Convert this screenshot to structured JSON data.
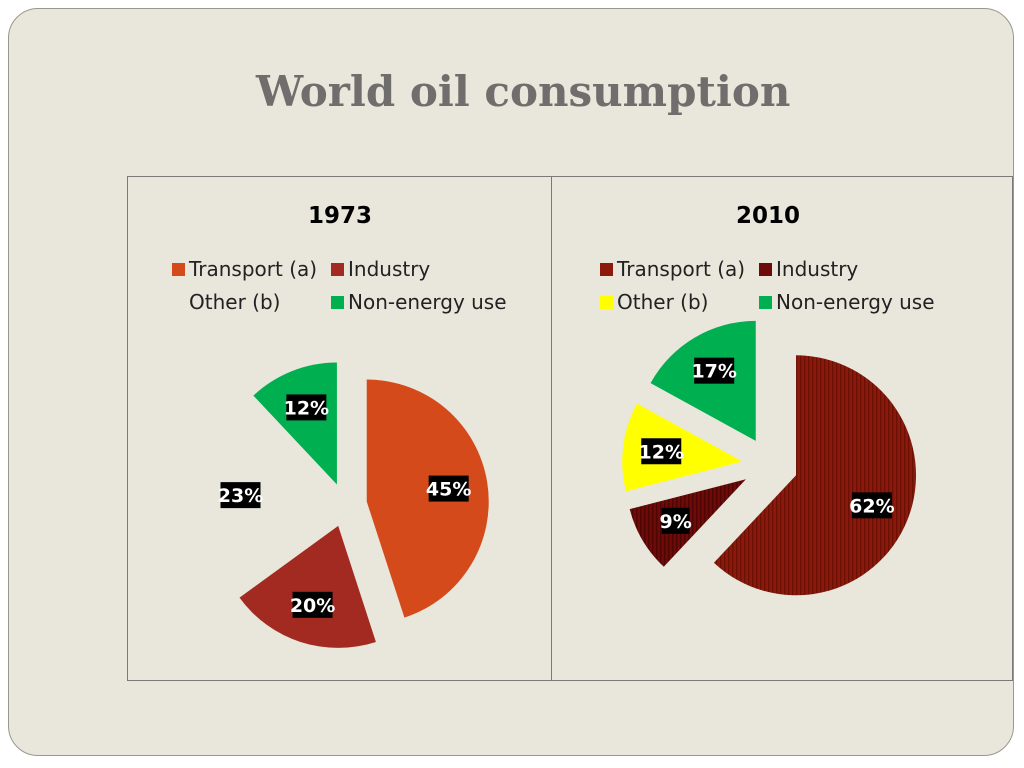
{
  "slide": {
    "title": "World oil consumption"
  },
  "chart_data": [
    {
      "type": "pie",
      "title": "1973",
      "legend_position": "top",
      "slices": [
        {
          "label": "Transport (a)",
          "value": 45,
          "display": "45%",
          "color": "#d54a1a",
          "exploded": true
        },
        {
          "label": "Industry",
          "value": 20,
          "display": "20%",
          "color": "#a32a20",
          "exploded": true
        },
        {
          "label": "Other (b)",
          "value": 23,
          "display": "23%",
          "color": "#e9e6dc",
          "exploded": true
        },
        {
          "label": "Non-energy use",
          "value": 12,
          "display": "12%",
          "color": "#00b050",
          "exploded": true
        }
      ]
    },
    {
      "type": "pie",
      "title": "2010",
      "legend_position": "top",
      "slices": [
        {
          "label": "Transport (a)",
          "value": 62,
          "display": "62%",
          "color": "#8b1a0c",
          "exploded": true
        },
        {
          "label": "Industry",
          "value": 9,
          "display": "9%",
          "color": "#6e0a08",
          "exploded": true
        },
        {
          "label": "Other (b)",
          "value": 12,
          "display": "12%",
          "color": "#ffff00",
          "exploded": true
        },
        {
          "label": "Non-energy use",
          "value": 17,
          "display": "17%",
          "color": "#00b050",
          "exploded": true
        }
      ]
    }
  ]
}
